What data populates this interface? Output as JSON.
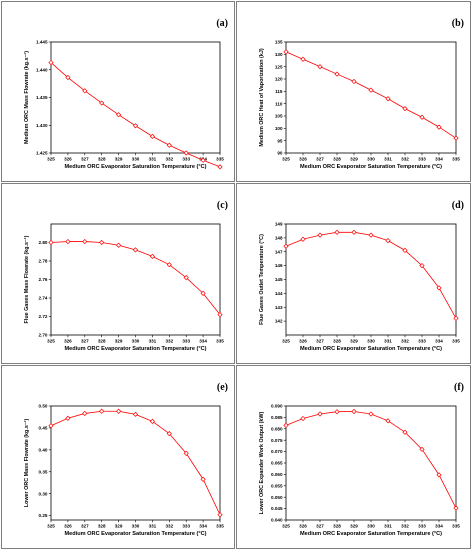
{
  "chart_data": [
    {
      "panel": "(a)",
      "type": "line",
      "xlabel": "Medium ORC Evaporator Saturation Temperature (°C)",
      "ylabel": "Medium ORC Mass Flowrate (kg.s⁻¹)",
      "xlim": [
        325,
        335
      ],
      "ylim": [
        1.425,
        1.445
      ],
      "x_ticks": [
        325,
        326,
        327,
        328,
        329,
        330,
        331,
        332,
        333,
        334,
        335
      ],
      "y_ticks": [
        "1.425",
        "1.430",
        "1.435",
        "1.440",
        "1.445"
      ],
      "series": [
        {
          "x": [
            325,
            326,
            327,
            328,
            329,
            330,
            331,
            332,
            333,
            334,
            335
          ],
          "values": [
            1.4413,
            1.4386,
            1.4362,
            1.434,
            1.4319,
            1.4299,
            1.428,
            1.4264,
            1.425,
            1.4237,
            1.4225
          ]
        }
      ],
      "color": "#ff0000"
    },
    {
      "panel": "(b)",
      "type": "line",
      "xlabel": "Medium ORC Evaporator Saturation Temperature (°C)",
      "ylabel": "Medium ORC Heat of Vaporization (kJ)",
      "xlim": [
        325,
        335
      ],
      "ylim": [
        90,
        135
      ],
      "x_ticks": [
        325,
        326,
        327,
        328,
        329,
        330,
        331,
        332,
        333,
        334,
        335
      ],
      "y_ticks": [
        "90",
        "95",
        "100",
        "105",
        "110",
        "115",
        "120",
        "125",
        "130",
        "135"
      ],
      "series": [
        {
          "x": [
            325,
            326,
            327,
            328,
            329,
            330,
            331,
            332,
            333,
            334,
            335
          ],
          "values": [
            131.0,
            128.0,
            125.0,
            122.0,
            119.0,
            115.5,
            112.0,
            108.0,
            104.5,
            100.5,
            96.0
          ]
        }
      ],
      "color": "#ff0000"
    },
    {
      "panel": "(c)",
      "type": "line",
      "xlabel": "Medium ORC Evaporator Saturation Temperature (°C)",
      "ylabel": "Flue Gases Mass Flowrate (kg.s⁻¹)",
      "xlim": [
        325,
        335
      ],
      "ylim": [
        2.7,
        2.82
      ],
      "x_ticks": [
        325,
        326,
        327,
        328,
        329,
        330,
        331,
        332,
        333,
        334,
        335
      ],
      "y_ticks": [
        "2.70",
        "2.72",
        "2.74",
        "2.76",
        "2.78",
        "2.80"
      ],
      "series": [
        {
          "x": [
            325,
            326,
            327,
            328,
            329,
            330,
            331,
            332,
            333,
            334,
            335
          ],
          "values": [
            2.8,
            2.801,
            2.801,
            2.8,
            2.797,
            2.792,
            2.785,
            2.776,
            2.762,
            2.745,
            2.722
          ]
        }
      ],
      "color": "#ff0000"
    },
    {
      "panel": "(d)",
      "type": "line",
      "xlabel": "Medium ORC Evaporator Saturation Temperature (°C)",
      "ylabel": "Flue Gases Outlet Temperature (°C)",
      "xlim": [
        325,
        335
      ],
      "ylim": [
        141,
        149
      ],
      "x_ticks": [
        325,
        326,
        327,
        328,
        329,
        330,
        331,
        332,
        333,
        334,
        335
      ],
      "y_ticks": [
        "142",
        "143",
        "144",
        "145",
        "146",
        "147",
        "148",
        "149"
      ],
      "series": [
        {
          "x": [
            325,
            326,
            327,
            328,
            329,
            330,
            331,
            332,
            333,
            334,
            335
          ],
          "values": [
            147.4,
            147.9,
            148.2,
            148.4,
            148.4,
            148.2,
            147.8,
            147.1,
            146.0,
            144.4,
            142.2
          ]
        }
      ],
      "color": "#ff0000"
    },
    {
      "panel": "(e)",
      "type": "line",
      "xlabel": "Medium ORC Evaporator Saturation Temperature (°C)",
      "ylabel": "Lower ORC Mass Flowrate (kg.s⁻¹)",
      "xlim": [
        325,
        335
      ],
      "ylim": [
        0.24,
        0.5
      ],
      "x_ticks": [
        325,
        326,
        327,
        328,
        329,
        330,
        331,
        332,
        333,
        334,
        335
      ],
      "y_ticks": [
        "0.25",
        "0.30",
        "0.35",
        "0.40",
        "0.45",
        "0.50"
      ],
      "series": [
        {
          "x": [
            325,
            326,
            327,
            328,
            329,
            330,
            331,
            332,
            333,
            334,
            335
          ],
          "values": [
            0.455,
            0.472,
            0.483,
            0.488,
            0.488,
            0.481,
            0.465,
            0.437,
            0.392,
            0.333,
            0.252
          ]
        }
      ],
      "color": "#ff0000"
    },
    {
      "panel": "(f)",
      "type": "line",
      "xlabel": "Medium ORC Evaporator Saturation Temperature (°C)",
      "ylabel": "Lower ORC Expander Work Output (kW)",
      "xlim": [
        325,
        335
      ],
      "ylim": [
        0.04,
        0.09
      ],
      "x_ticks": [
        325,
        326,
        327,
        328,
        329,
        330,
        331,
        332,
        333,
        334,
        335
      ],
      "y_ticks": [
        "0.040",
        "0.045",
        "0.050",
        "0.055",
        "0.060",
        "0.065",
        "0.070",
        "0.075",
        "0.080",
        "0.085",
        "0.090"
      ],
      "series": [
        {
          "x": [
            325,
            326,
            327,
            328,
            329,
            330,
            331,
            332,
            333,
            334,
            335
          ],
          "values": [
            0.0815,
            0.0845,
            0.0865,
            0.0875,
            0.0876,
            0.0865,
            0.0835,
            0.0785,
            0.071,
            0.0598,
            0.0452
          ]
        }
      ],
      "color": "#ff0000"
    }
  ]
}
